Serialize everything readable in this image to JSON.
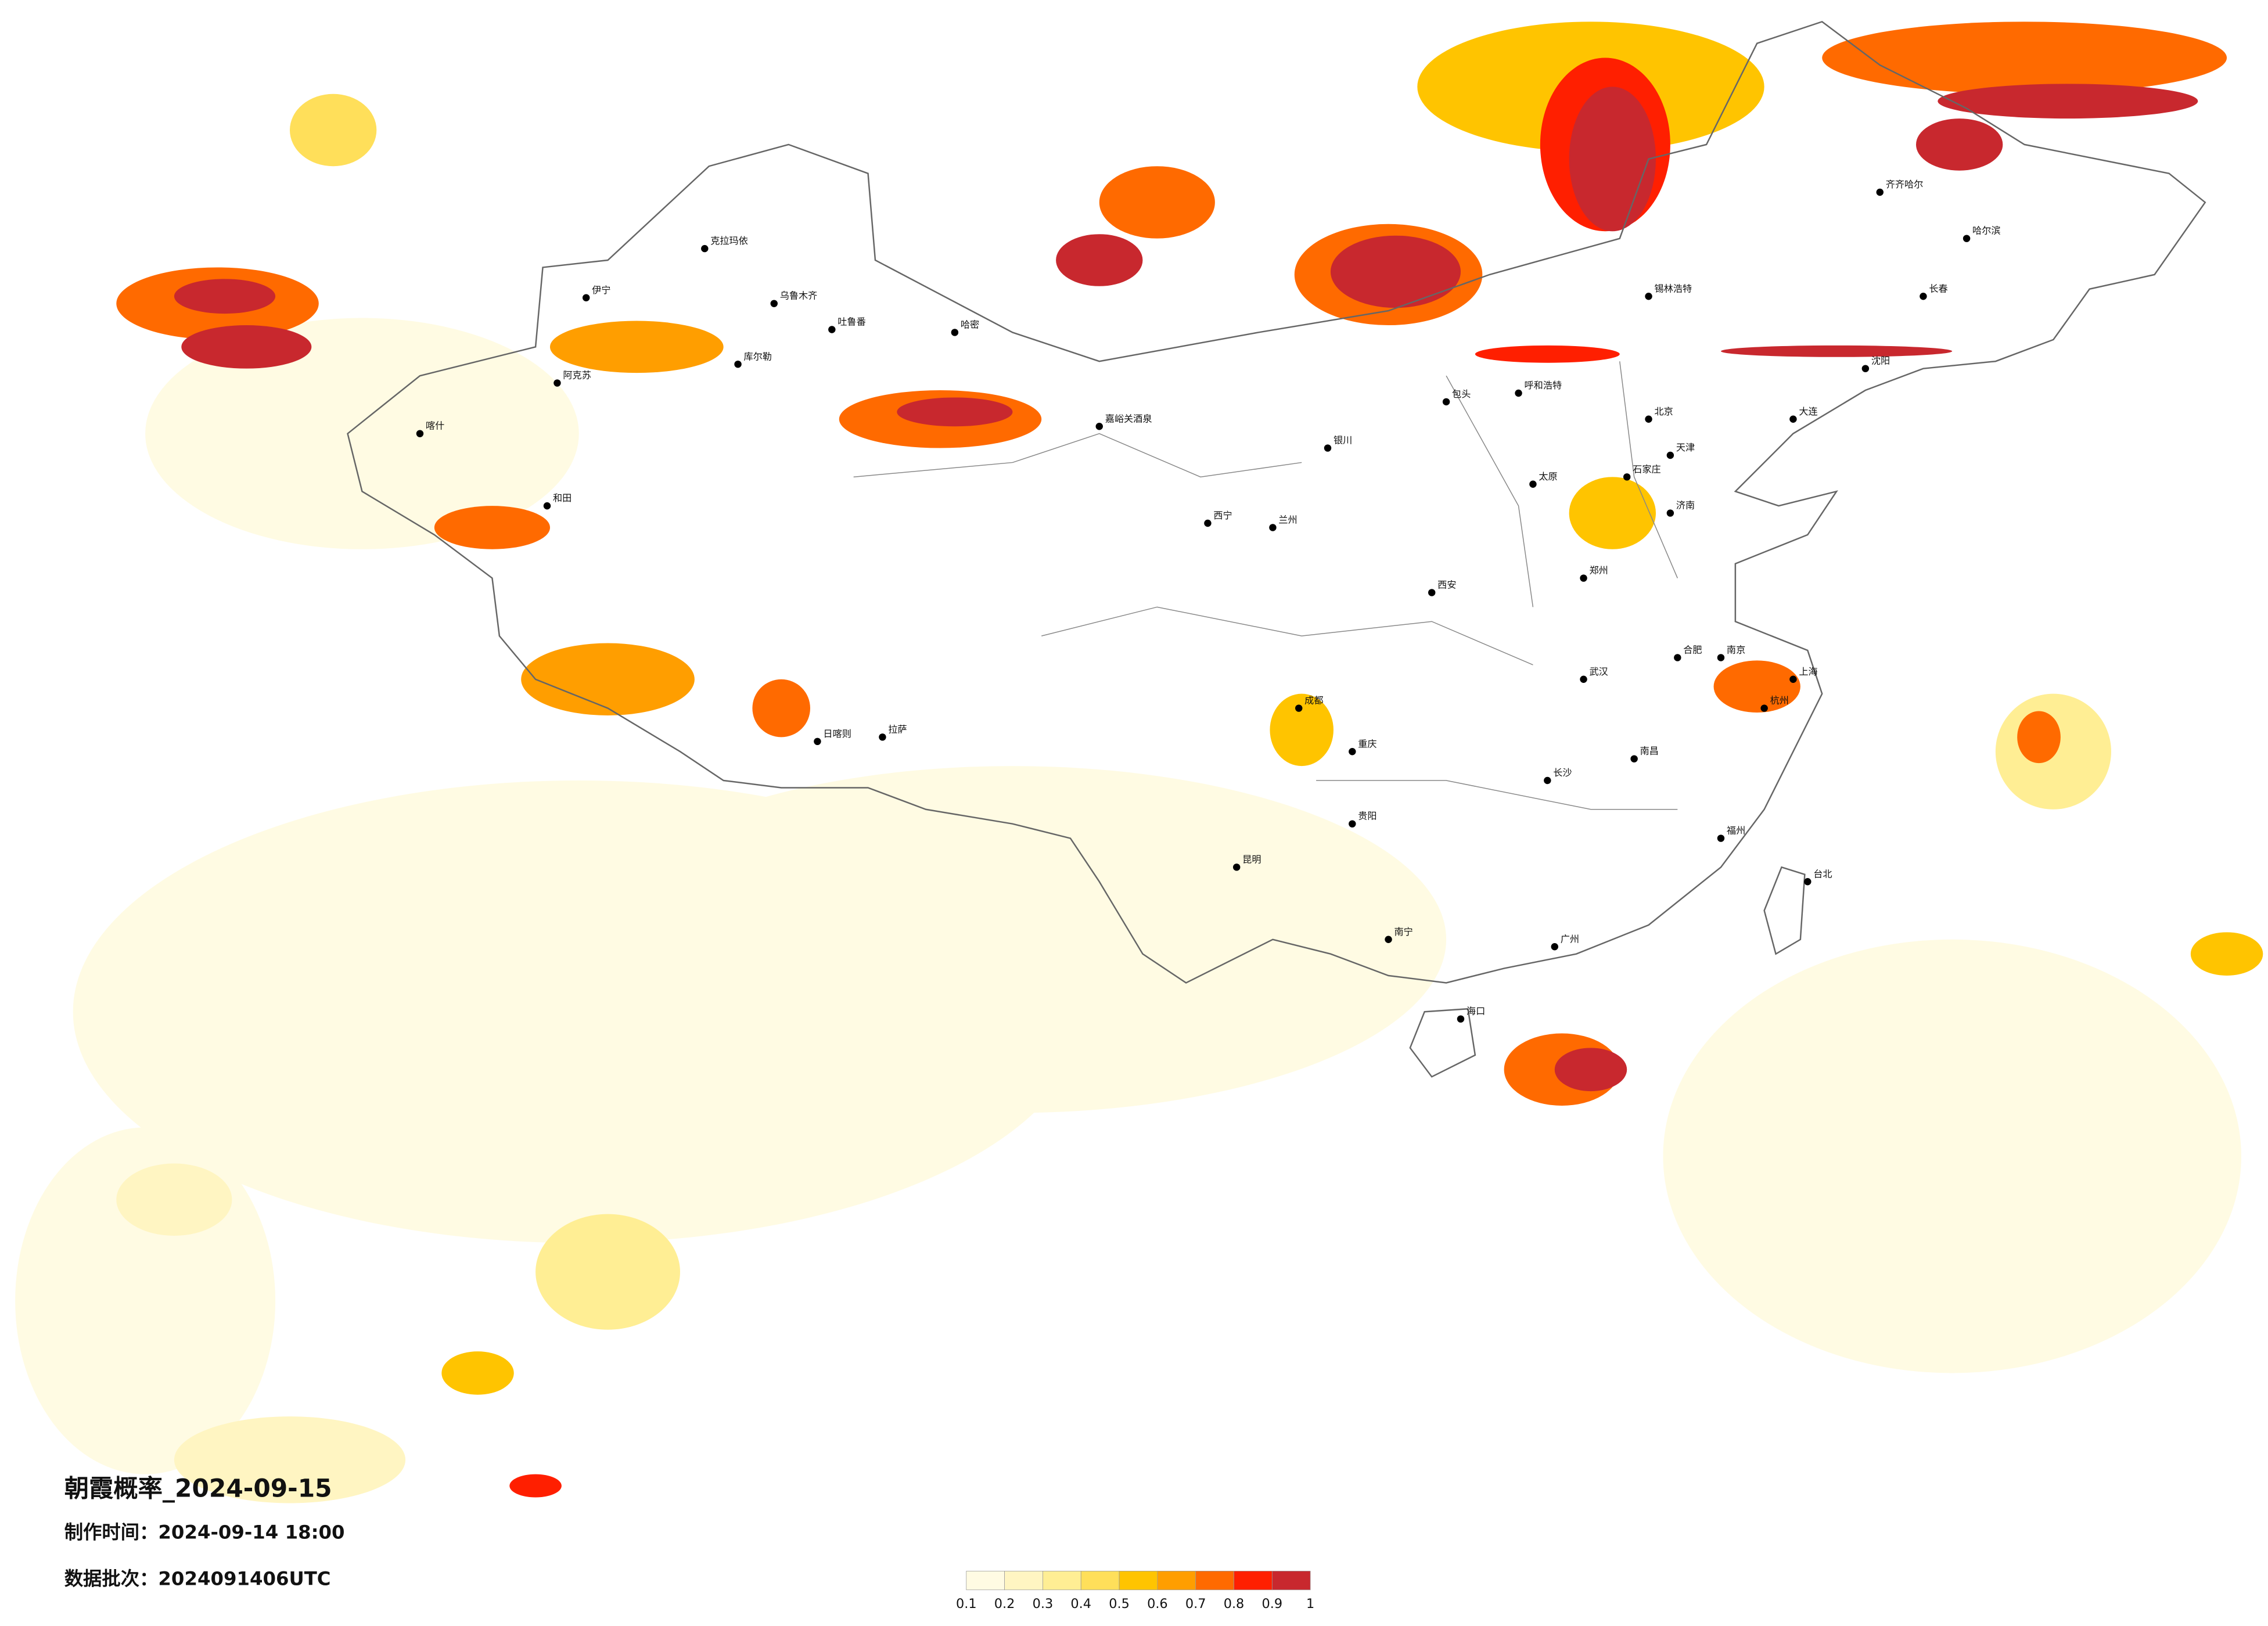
{
  "title": "朝霞概率_2024-09-15",
  "made_time": "制作时间：2024-09-14 18:00",
  "data_batch": "数据批次：2024091406UTC",
  "legend": {
    "ticks": [
      0.1,
      0.2,
      0.3,
      0.4,
      0.5,
      0.6,
      0.7,
      0.8,
      0.9,
      1
    ],
    "colors": [
      "#fffbe3",
      "#fff5c2",
      "#ffee94",
      "#ffdf5a",
      "#ffc400",
      "#ff9e00",
      "#ff6a00",
      "#ff1f00",
      "#c8282e"
    ]
  },
  "cities": [
    "克拉玛依",
    "伊宁",
    "乌鲁木齐",
    "吐鲁番",
    "哈密",
    "库尔勒",
    "阿克苏",
    "喀什",
    "和田",
    "嘉峪关酒泉",
    "西宁",
    "兰州",
    "银川",
    "包头",
    "呼和浩特",
    "北京",
    "天津",
    "石家庄",
    "太原",
    "济南",
    "郑州",
    "西安",
    "成都",
    "重庆",
    "武汉",
    "合肥",
    "南京",
    "上海",
    "杭州",
    "长沙",
    "南昌",
    "福州",
    "贵阳",
    "昆明",
    "南宁",
    "广州",
    "海口",
    "台北",
    "拉萨",
    "日喀则",
    "沈阳",
    "长春",
    "哈尔滨",
    "齐齐哈尔",
    "锡林浩特",
    "大连"
  ]
}
